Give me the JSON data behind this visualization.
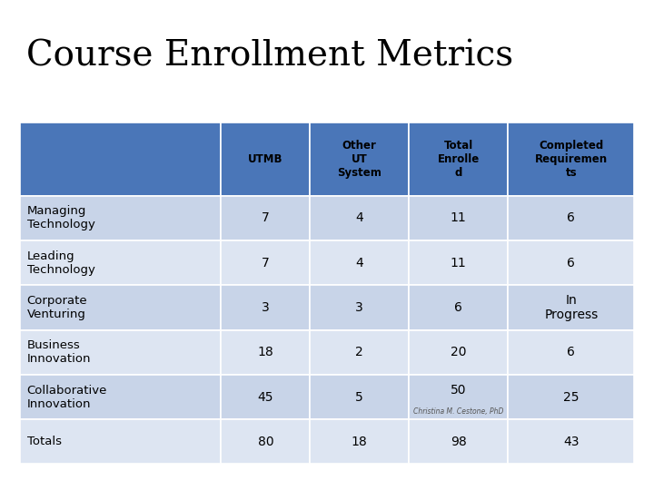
{
  "title": "Course Enrollment Metrics",
  "title_fontsize": 28,
  "title_color": "#000000",
  "bg_beige": "#f0e6d3",
  "bg_white": "#ffffff",
  "red_line_color": "#c0392b",
  "header_bg_color": "#4a76b8",
  "row_colors": [
    "#c8d4e8",
    "#dde5f2"
  ],
  "col_headers": [
    "UTMB",
    "Other\nUT\nSystem",
    "Total\nEnrolle\nd",
    "Completed\nRequiremen\nts"
  ],
  "row_labels": [
    "Managing\nTechnology",
    "Leading\nTechnology",
    "Corporate\nVenturing",
    "Business\nInnovation",
    "Collaborative\nInnovation",
    "Totals"
  ],
  "table_data": [
    [
      "7",
      "4",
      "11",
      "6"
    ],
    [
      "7",
      "4",
      "11",
      "6"
    ],
    [
      "3",
      "3",
      "6",
      "In\nProgress"
    ],
    [
      "18",
      "2",
      "20",
      "6"
    ],
    [
      "45",
      "5",
      "50",
      "25"
    ],
    [
      "80",
      "18",
      "98",
      "43"
    ]
  ],
  "footer_text": "Christina M. Cestone, PhD",
  "figsize": [
    7.2,
    5.4
  ],
  "dpi": 100
}
